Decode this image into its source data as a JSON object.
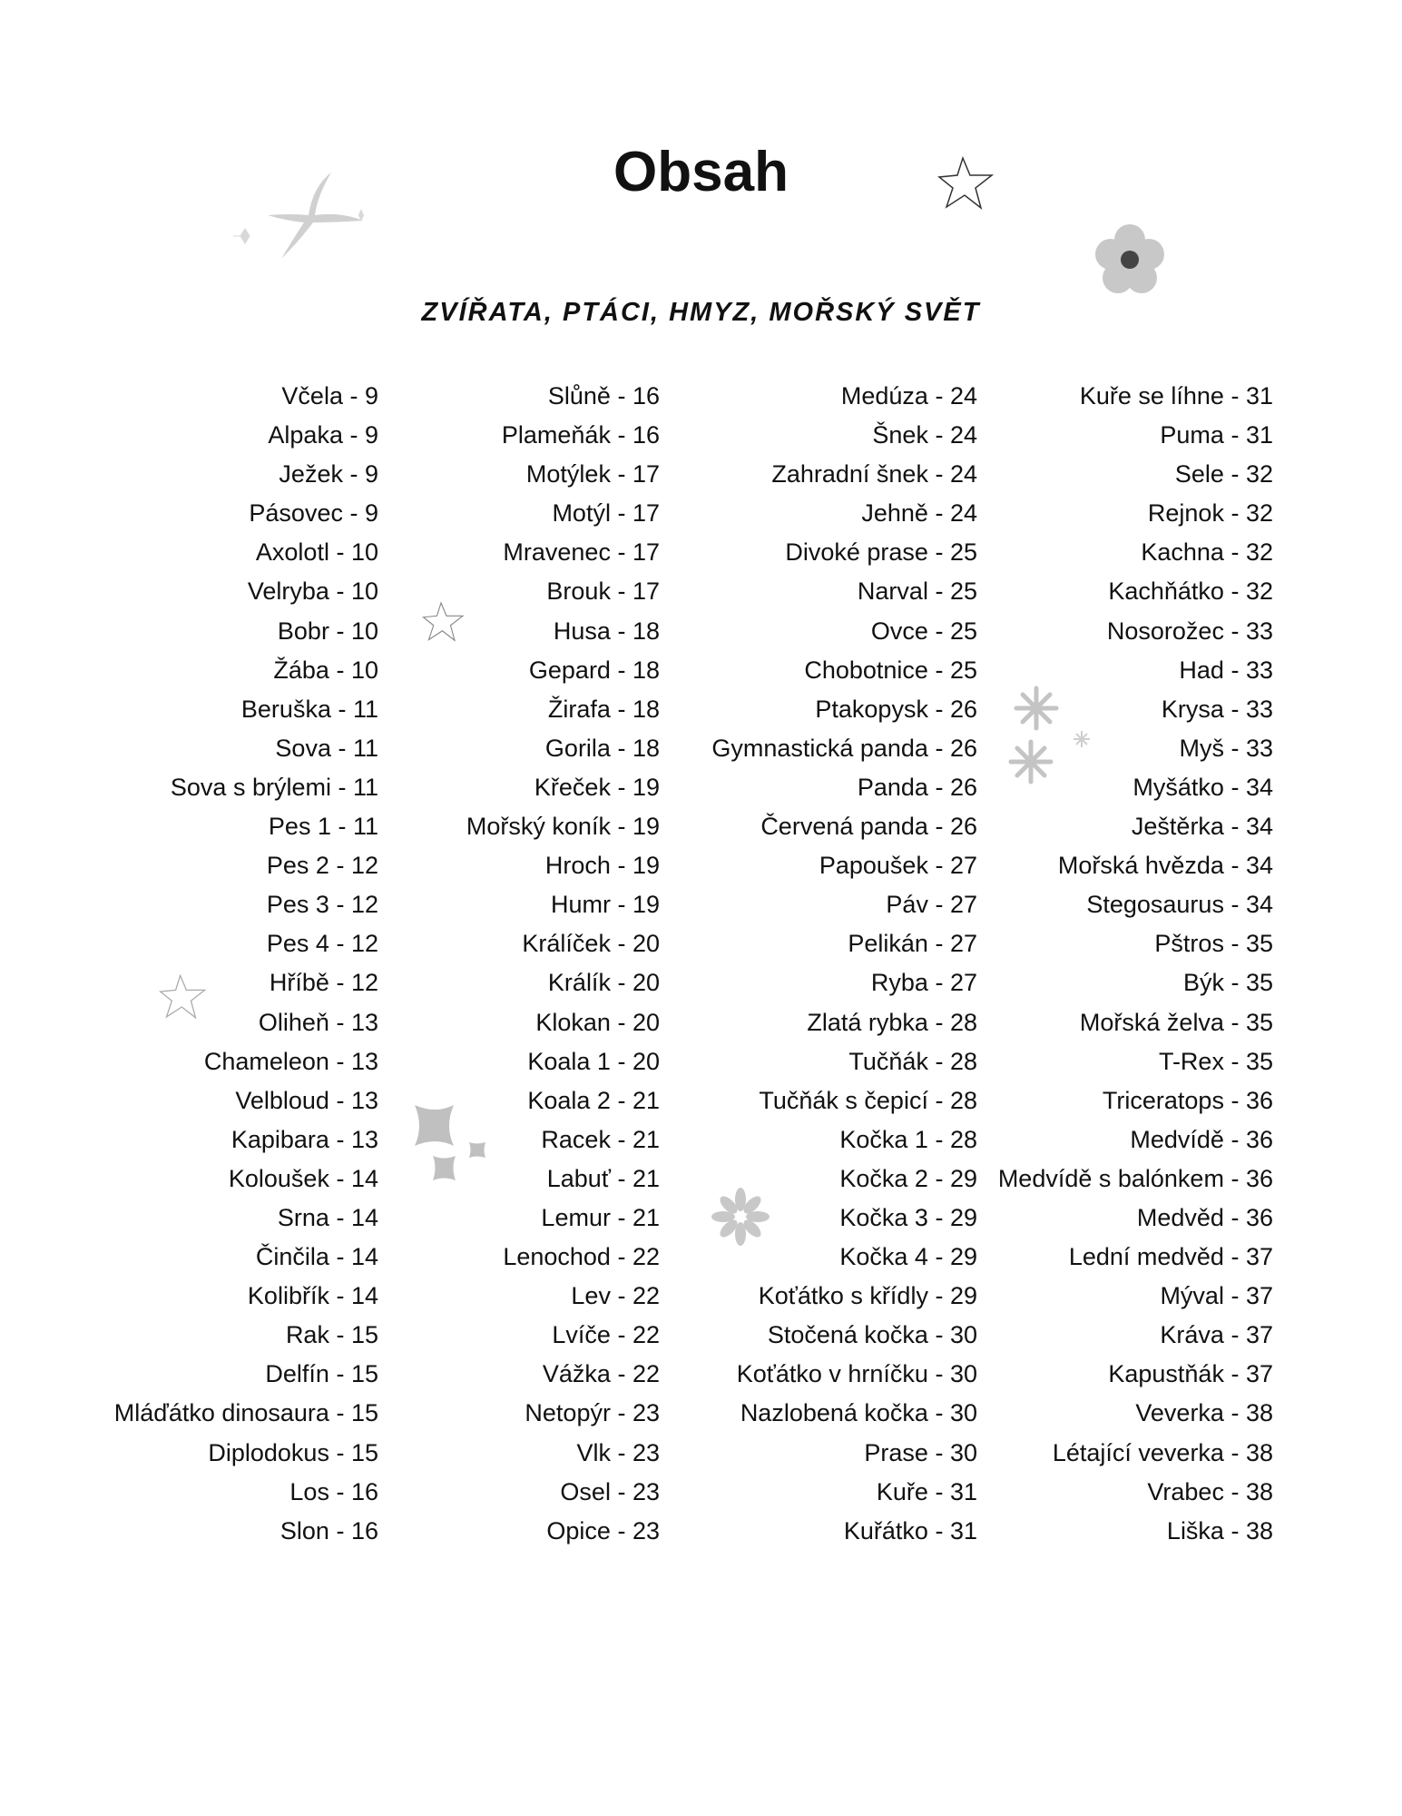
{
  "title": "Obsah",
  "subtitle": "ZVÍŘATA, PTÁCI, HMYZ, MOŘSKÝ SVĚT",
  "separator": " - ",
  "columns": [
    [
      {
        "name": "Včela",
        "page": "9"
      },
      {
        "name": "Alpaka",
        "page": "9"
      },
      {
        "name": "Ježek",
        "page": "9"
      },
      {
        "name": "Pásovec",
        "page": "9"
      },
      {
        "name": "Axolotl",
        "page": "10"
      },
      {
        "name": "Velryba",
        "page": "10"
      },
      {
        "name": "Bobr",
        "page": "10"
      },
      {
        "name": "Žába",
        "page": "10"
      },
      {
        "name": "Beruška",
        "page": "11"
      },
      {
        "name": "Sova",
        "page": "11"
      },
      {
        "name": "Sova s brýlemi",
        "page": "11"
      },
      {
        "name": "Pes 1",
        "page": "11"
      },
      {
        "name": "Pes 2",
        "page": "12"
      },
      {
        "name": "Pes 3",
        "page": "12"
      },
      {
        "name": "Pes 4",
        "page": "12"
      },
      {
        "name": "Hříbě",
        "page": "12"
      },
      {
        "name": "Oliheň",
        "page": "13"
      },
      {
        "name": "Chameleon",
        "page": "13"
      },
      {
        "name": "Velbloud",
        "page": "13"
      },
      {
        "name": "Kapibara",
        "page": "13"
      },
      {
        "name": "Koloušek",
        "page": "14"
      },
      {
        "name": "Srna",
        "page": "14"
      },
      {
        "name": "Činčila",
        "page": "14"
      },
      {
        "name": "Kolibřík",
        "page": "14"
      },
      {
        "name": "Rak",
        "page": "15"
      },
      {
        "name": "Delfín",
        "page": "15"
      },
      {
        "name": "Mláďátko dinosaura",
        "page": "15"
      },
      {
        "name": "Diplodokus",
        "page": "15"
      },
      {
        "name": "Los",
        "page": "16"
      },
      {
        "name": "Slon",
        "page": "16"
      }
    ],
    [
      {
        "name": "Slůně",
        "page": "16"
      },
      {
        "name": "Plameňák",
        "page": "16"
      },
      {
        "name": "Motýlek",
        "page": "17"
      },
      {
        "name": "Motýl",
        "page": "17"
      },
      {
        "name": "Mravenec",
        "page": "17"
      },
      {
        "name": "Brouk",
        "page": "17"
      },
      {
        "name": "Husa",
        "page": "18"
      },
      {
        "name": "Gepard",
        "page": "18"
      },
      {
        "name": "Žirafa",
        "page": "18"
      },
      {
        "name": "Gorila",
        "page": "18"
      },
      {
        "name": "Křeček",
        "page": "19"
      },
      {
        "name": "Mořský koník",
        "page": "19"
      },
      {
        "name": "Hroch",
        "page": "19"
      },
      {
        "name": "Humr",
        "page": "19"
      },
      {
        "name": "Králíček",
        "page": "20"
      },
      {
        "name": "Králík",
        "page": "20"
      },
      {
        "name": "Klokan",
        "page": "20"
      },
      {
        "name": "Koala 1",
        "page": "20"
      },
      {
        "name": "Koala 2",
        "page": "21"
      },
      {
        "name": "Racek",
        "page": "21"
      },
      {
        "name": "Labuť",
        "page": "21"
      },
      {
        "name": "Lemur",
        "page": "21"
      },
      {
        "name": "Lenochod",
        "page": "22"
      },
      {
        "name": "Lev",
        "page": "22"
      },
      {
        "name": "Lvíče",
        "page": "22"
      },
      {
        "name": "Vážka",
        "page": "22"
      },
      {
        "name": "Netopýr",
        "page": "23"
      },
      {
        "name": "Vlk",
        "page": "23"
      },
      {
        "name": "Osel",
        "page": "23"
      },
      {
        "name": "Opice",
        "page": "23"
      }
    ],
    [
      {
        "name": "Medúza",
        "page": "24"
      },
      {
        "name": "Šnek",
        "page": "24"
      },
      {
        "name": "Zahradní šnek",
        "page": "24"
      },
      {
        "name": "Jehně",
        "page": "24"
      },
      {
        "name": "Divoké prase",
        "page": "25"
      },
      {
        "name": "Narval",
        "page": "25"
      },
      {
        "name": "Ovce",
        "page": "25"
      },
      {
        "name": "Chobotnice",
        "page": "25"
      },
      {
        "name": "Ptakopysk",
        "page": "26"
      },
      {
        "name": "Gymnastická panda",
        "page": "26"
      },
      {
        "name": "Panda",
        "page": "26"
      },
      {
        "name": "Červená panda",
        "page": "26"
      },
      {
        "name": "Papoušek",
        "page": "27"
      },
      {
        "name": "Páv",
        "page": "27"
      },
      {
        "name": "Pelikán",
        "page": "27"
      },
      {
        "name": "Ryba",
        "page": "27"
      },
      {
        "name": "Zlatá rybka",
        "page": "28"
      },
      {
        "name": "Tučňák",
        "page": "28"
      },
      {
        "name": "Tučňák s čepicí",
        "page": "28"
      },
      {
        "name": "Kočka 1",
        "page": "28"
      },
      {
        "name": "Kočka 2",
        "page": "29"
      },
      {
        "name": "Kočka 3",
        "page": "29"
      },
      {
        "name": "Kočka 4",
        "page": "29"
      },
      {
        "name": "Koťátko s křídly",
        "page": "29"
      },
      {
        "name": "Stočená kočka",
        "page": "30"
      },
      {
        "name": "Koťátko v hrníčku",
        "page": "30"
      },
      {
        "name": "Nazlobená kočka",
        "page": "30"
      },
      {
        "name": "Prase",
        "page": "30"
      },
      {
        "name": "Kuře",
        "page": "31"
      },
      {
        "name": "Kuřátko",
        "page": "31"
      }
    ],
    [
      {
        "name": "Kuře se líhne",
        "page": "31"
      },
      {
        "name": "Puma",
        "page": "31"
      },
      {
        "name": "Sele",
        "page": "32"
      },
      {
        "name": "Rejnok",
        "page": "32"
      },
      {
        "name": "Kachna",
        "page": "32"
      },
      {
        "name": "Kachňátko",
        "page": "32"
      },
      {
        "name": "Nosorožec",
        "page": "33"
      },
      {
        "name": "Had",
        "page": "33"
      },
      {
        "name": "Krysa",
        "page": "33"
      },
      {
        "name": "Myš",
        "page": "33"
      },
      {
        "name": "Myšátko",
        "page": "34"
      },
      {
        "name": "Ještěrka",
        "page": "34"
      },
      {
        "name": "Mořská hvězda",
        "page": "34"
      },
      {
        "name": "Stegosaurus",
        "page": "34"
      },
      {
        "name": "Pštros",
        "page": "35"
      },
      {
        "name": "Býk",
        "page": "35"
      },
      {
        "name": "Mořská želva",
        "page": "35"
      },
      {
        "name": "T-Rex",
        "page": "35"
      },
      {
        "name": "Triceratops",
        "page": "36"
      },
      {
        "name": "Medvídě",
        "page": "36"
      },
      {
        "name": "Medvídě s balónkem",
        "page": "36"
      },
      {
        "name": "Medvěd",
        "page": "36"
      },
      {
        "name": "Lední medvěd",
        "page": "37"
      },
      {
        "name": "Mýval",
        "page": "37"
      },
      {
        "name": "Kráva",
        "page": "37"
      },
      {
        "name": "Kapustňák",
        "page": "37"
      },
      {
        "name": "Veverka",
        "page": "38"
      },
      {
        "name": "Létající veverka",
        "page": "38"
      },
      {
        "name": "Vrabec",
        "page": "38"
      },
      {
        "name": "Liška",
        "page": "38"
      }
    ]
  ],
  "colors": {
    "text": "#111111",
    "decoration": "#c0c0c0",
    "flower_center": "#444444"
  },
  "decorations": [
    "sparkle-icon",
    "star-outline-icon",
    "flower-icon",
    "asterisk-flower-icon",
    "daisy-icon"
  ]
}
